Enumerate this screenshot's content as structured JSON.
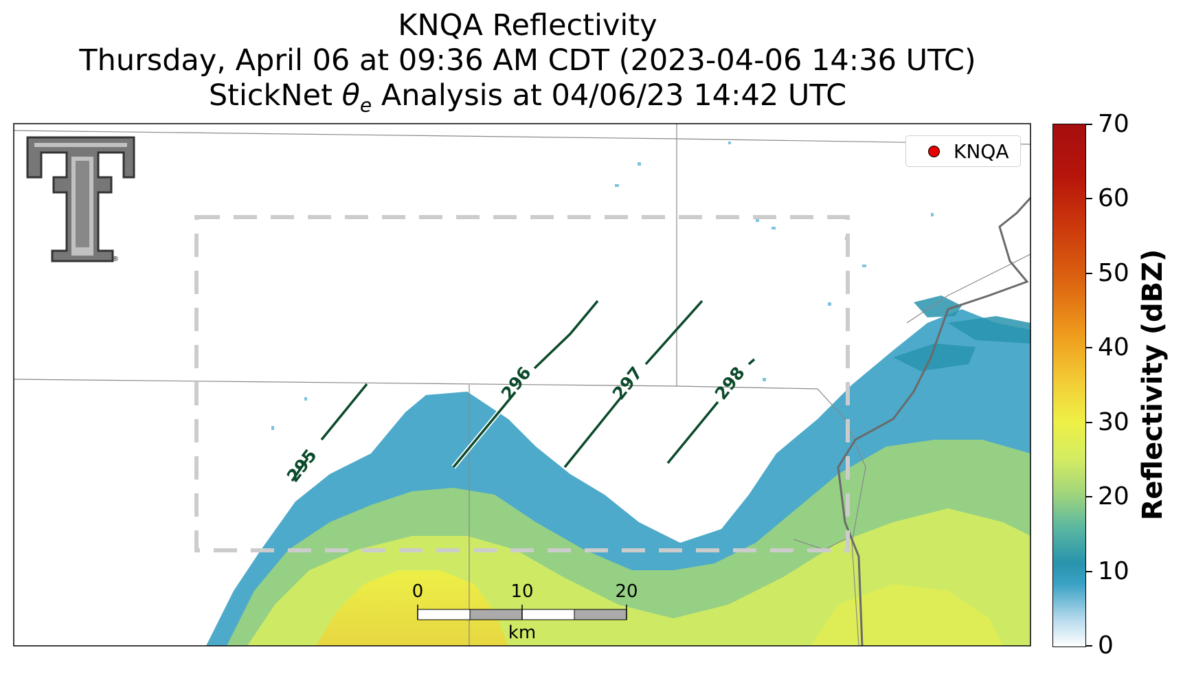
{
  "title": {
    "line1": "KNQA Reflectivity",
    "line2": "Thursday, April 06 at 09:36 AM CDT (2023-04-06 14:36 UTC)",
    "line3_prefix": "StickNet ",
    "line3_symbol": "θ",
    "line3_sub": "e",
    "line3_suffix": " Analysis at 04/06/23 14:42 UTC"
  },
  "legend": {
    "label": "KNQA",
    "marker_color": "#e60000"
  },
  "contours": [
    {
      "label": "295"
    },
    {
      "label": "296"
    },
    {
      "label": "297"
    },
    {
      "label": "298"
    }
  ],
  "contour_color": "#0b4a2b",
  "colorbar": {
    "label": "Reflectivity (dBZ)",
    "ticks": [
      "0",
      "10",
      "20",
      "30",
      "40",
      "50",
      "60",
      "70"
    ],
    "min": 0,
    "max": 70
  },
  "scalebar": {
    "ticks": [
      "0",
      "10",
      "20"
    ],
    "unit": "km"
  },
  "logo": {
    "name": "texas-tech-double-t-logo",
    "mark": "®"
  },
  "colors": {
    "reflectivity_low": "#3aa1c4",
    "reflectivity_mid": "#9fd47c",
    "reflectivity_high": "#eef046",
    "county_lines": "#888888",
    "box": "#cccccc"
  }
}
